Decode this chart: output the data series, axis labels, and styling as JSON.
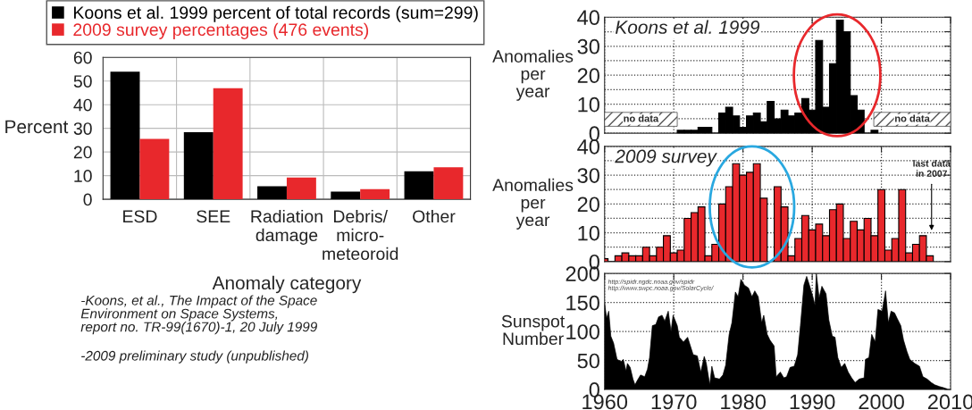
{
  "chart_data": [
    {
      "type": "bar",
      "categories": [
        "ESD",
        "SEE",
        "Radiation\ndamage",
        "Debris/\nmicro-\nmeteoroid",
        "Other"
      ],
      "series": [
        {
          "name": "Koons et al. 1999 percent of total records (sum=299)",
          "color": "#000000",
          "values": [
            54,
            28.4,
            5.5,
            3.2,
            11.8
          ]
        },
        {
          "name": "2009 survey percentages (476 events)",
          "color": "#e8282c",
          "values": [
            25.5,
            47,
            9.2,
            4.3,
            13.5
          ]
        }
      ],
      "ylim": [
        0,
        60
      ],
      "yticks": [
        0,
        10,
        20,
        30,
        40,
        50,
        60
      ],
      "ylabel": "Percent",
      "xlabel": "Anomaly category",
      "grid": true,
      "legend": "top",
      "annotations": [
        "-Koons, et al., The Impact of the Space\nEnvironment on Space Systems,\nreport no. TR-99(1670)-1, 20 July 1999",
        "-2009 preliminary study (unpublished)"
      ]
    },
    {
      "type": "bar",
      "title": "Koons et al. 1999",
      "ylabel": "Anomalies\nper\nyear",
      "x": [
        1971,
        1972,
        1973,
        1974,
        1975,
        1976,
        1977,
        1978,
        1979,
        1980,
        1981,
        1982,
        1983,
        1984,
        1985,
        1986,
        1987,
        1988,
        1989,
        1990,
        1991,
        1992,
        1993,
        1994,
        1995,
        1996,
        1997,
        1998,
        1999
      ],
      "series": [
        {
          "color": "#000000",
          "values": [
            1,
            1,
            1,
            2,
            2,
            null,
            7,
            9,
            6,
            2,
            6,
            7,
            4,
            11,
            5,
            8,
            6,
            7,
            12,
            8,
            32,
            9,
            24,
            39,
            35,
            13,
            8,
            null,
            1
          ]
        }
      ],
      "xlim": [
        1960,
        2010
      ],
      "xticks": [
        {
          "value": 1960,
          "label": null
        },
        {
          "value": 1970,
          "label": null
        },
        {
          "value": 1980,
          "label": null
        },
        {
          "value": 1990,
          "label": null
        },
        {
          "value": 2000,
          "label": null
        },
        {
          "value": 2010,
          "label": null
        }
      ],
      "ylim": [
        0,
        40
      ],
      "yticks": [
        0,
        {
          "value": 5,
          "label": null
        },
        10,
        {
          "value": 15,
          "label": null
        },
        20,
        {
          "value": 25,
          "label": null
        },
        30,
        {
          "value": 35,
          "label": null
        },
        40
      ],
      "tick_labels": "y",
      "grid": true,
      "bands": [
        {
          "axis": "x",
          "from": 1960,
          "to": 1970.5,
          "label": "no data",
          "color": "#555555"
        },
        {
          "axis": "x",
          "from": 1998.9,
          "to": 2010,
          "label": "no data",
          "color": "#555555"
        }
      ]
    },
    {
      "type": "bar",
      "title": "2009 survey",
      "ylabel": "Anomalies\nper\nyear",
      "x": [
        1960,
        1961,
        1962,
        1963,
        1964,
        1965,
        1966,
        1967,
        1968,
        1969,
        1970,
        1971,
        1972,
        1973,
        1974,
        1975,
        1976,
        1977,
        1978,
        1979,
        1980,
        1981,
        1982,
        1983,
        1984,
        1985,
        1986,
        1987,
        1988,
        1989,
        1990,
        1991,
        1992,
        1993,
        1994,
        1995,
        1996,
        1997,
        1998,
        1999,
        2000,
        2001,
        2002,
        2003,
        2004,
        2005,
        2006,
        2007
      ],
      "series": [
        {
          "color": "#e8282c",
          "values": [
            1,
            null,
            2,
            3,
            2,
            2,
            5,
            2,
            5,
            9,
            3,
            4,
            15,
            17,
            19,
            2,
            6,
            20,
            26,
            34,
            30,
            31,
            34,
            22,
            null,
            26,
            19,
            2,
            8,
            16,
            11,
            13,
            9,
            18,
            20,
            8,
            14,
            11,
            15,
            9,
            25,
            4,
            8,
            25,
            3,
            6,
            9,
            2
          ]
        }
      ],
      "xlim": [
        1960,
        2010
      ],
      "xticks": [
        {
          "value": 1960,
          "label": null
        },
        {
          "value": 1970,
          "label": null
        },
        {
          "value": 1980,
          "label": null
        },
        {
          "value": 1990,
          "label": null
        },
        {
          "value": 2000,
          "label": null
        },
        {
          "value": 2010,
          "label": null
        }
      ],
      "ylim": [
        0,
        40
      ],
      "yticks": [
        0,
        {
          "value": 5,
          "label": null
        },
        10,
        {
          "value": 15,
          "label": null
        },
        20,
        {
          "value": 25,
          "label": null
        },
        30,
        {
          "value": 35,
          "label": null
        },
        40
      ],
      "tick_labels": "y",
      "grid": true,
      "annotations": [
        "last data\nin 2007"
      ]
    },
    {
      "type": "area",
      "ylabel": "Sunspot\nNumber",
      "x": [
        1960.0,
        1960.3,
        1960.6,
        1960.9,
        1961.3,
        1961.8,
        1962.4,
        1962.7,
        1963.1,
        1963.3,
        1963.7,
        1964.1,
        1964.4,
        1964.7,
        1965.2,
        1965.8,
        1966.2,
        1966.5,
        1966.9,
        1967.4,
        1967.8,
        1968.3,
        1968.7,
        1969.2,
        1969.6,
        1969.9,
        1970.5,
        1970.8,
        1971.4,
        1972.0,
        1972.8,
        1973.4,
        1973.9,
        1974.4,
        1974.7,
        1975.2,
        1975.5,
        1975.9,
        1976.6,
        1977.1,
        1977.5,
        1978.0,
        1978.4,
        1978.9,
        1979.3,
        1979.7,
        1980.2,
        1980.8,
        1981.3,
        1981.7,
        1982.2,
        1982.7,
        1983.0,
        1983.5,
        1983.9,
        1984.5,
        1984.8,
        1985.4,
        1985.9,
        1986.3,
        1986.8,
        1987.4,
        1987.9,
        1988.3,
        1988.8,
        1989.2,
        1989.6,
        1990.1,
        1990.4,
        1990.6,
        1991.0,
        1991.4,
        1992.0,
        1992.4,
        1992.9,
        1993.3,
        1993.7,
        1994.2,
        1994.7,
        1995.2,
        1995.7,
        1996.2,
        1996.8,
        1997.5,
        1997.7,
        1998.2,
        1998.6,
        1999.1,
        1999.5,
        2000.1,
        2000.4,
        2000.6,
        2001.0,
        2001.4,
        2001.9,
        2002.3,
        2002.8,
        2003.2,
        2003.7,
        2004.1,
        2004.8,
        2005.5,
        2006.0,
        2006.6,
        2007.2,
        2007.7,
        2008.4,
        2009.0,
        2009.5
      ],
      "series": [
        {
          "color": "#000000",
          "values": [
            148,
            123,
            135,
            92,
            80,
            52,
            48,
            52,
            32,
            45,
            38,
            18,
            8,
            15,
            25,
            22,
            35,
            55,
            110,
            112,
            125,
            128,
            118,
            135,
            100,
            128,
            110,
            90,
            82,
            90,
            60,
            58,
            30,
            57,
            45,
            8,
            40,
            20,
            18,
            25,
            42,
            95,
            115,
            168,
            160,
            190,
            180,
            175,
            160,
            170,
            160,
            115,
            128,
            95,
            85,
            75,
            22,
            30,
            20,
            22,
            38,
            40,
            60,
            110,
            180,
            195,
            180,
            160,
            145,
            200,
            158,
            178,
            165,
            120,
            92,
            90,
            55,
            38,
            45,
            30,
            20,
            12,
            18,
            20,
            52,
            55,
            95,
            82,
            138,
            135,
            155,
            170,
            115,
            135,
            132,
            122,
            110,
            85,
            65,
            52,
            45,
            40,
            22,
            18,
            12,
            8,
            5,
            3,
            1
          ]
        }
      ],
      "xlim": [
        1960,
        2010
      ],
      "xticks": [
        1960,
        1970,
        1980,
        1990,
        2000,
        2010
      ],
      "ylim": [
        0,
        200
      ],
      "yticks": [
        0,
        50,
        100,
        150,
        200
      ],
      "grid": true,
      "annotations": [
        "http://spidr.ngdc.noaa.gov/spidr",
        "http://www.swpc.noaa.gov/SolarCycle/"
      ]
    }
  ]
}
